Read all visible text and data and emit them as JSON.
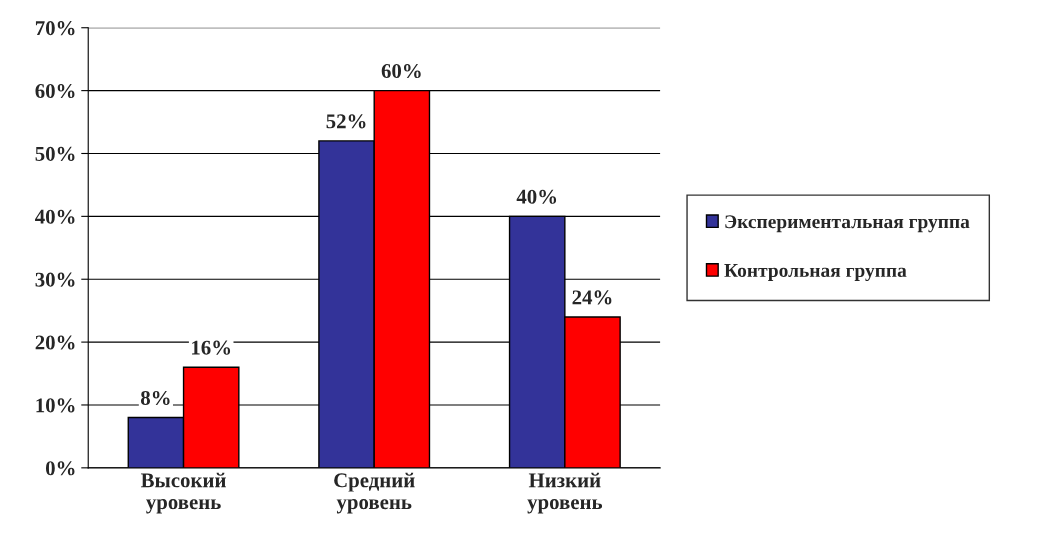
{
  "chart_data": {
    "type": "bar",
    "categories": [
      "Высокий\nуровень",
      "Средний\nуровень",
      "Низкий\nуровень"
    ],
    "series": [
      {
        "name": "Экспериментальная группа",
        "color": "#333399",
        "values": [
          8,
          52,
          40
        ],
        "value_labels": [
          "8%",
          "52%",
          "40%"
        ]
      },
      {
        "name": "Контрольная группа",
        "color": "#ff0000",
        "values": [
          16,
          60,
          24
        ],
        "value_labels": [
          "16%",
          "60%",
          "24%"
        ]
      }
    ],
    "ylim": [
      0,
      70
    ],
    "yticks": [
      {
        "value": 0,
        "label": "0%"
      },
      {
        "value": 10,
        "label": "10%"
      },
      {
        "value": 20,
        "label": "20%"
      },
      {
        "value": 30,
        "label": "30%"
      },
      {
        "value": 40,
        "label": "40%"
      },
      {
        "value": 50,
        "label": "50%"
      },
      {
        "value": 60,
        "label": "60%"
      },
      {
        "value": 70,
        "label": "70%"
      }
    ],
    "grid": "y",
    "legend": "right"
  }
}
